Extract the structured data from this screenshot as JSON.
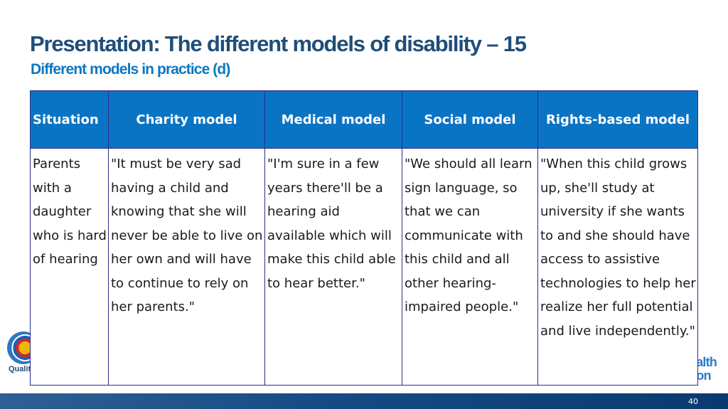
{
  "slide": {
    "title": "Presentation: The different models of disability – 15",
    "subtitle": "Different models in practice (d)",
    "page_number": "40"
  },
  "logos": {
    "left_text": "Quality",
    "right_text_1": "ealth",
    "right_text_2": "tion"
  },
  "table": {
    "headers": [
      "Situation",
      "Charity model",
      "Medical model",
      "Social model",
      "Rights-based model"
    ],
    "rows": [
      [
        "Parents with a daughter who is hard of hearing",
        "\"It must be very sad having a child and knowing that she will never be able to live on her own and will have to continue to rely on her parents.\"",
        "\"I'm sure in a few years there'll be a hearing aid available which will make this child able to hear better.\"",
        "\"We should all learn sign language, so that we can communicate with this child and all other hearing-impaired people.\"",
        "\"When this child grows up, she'll study at university if she wants to and she should have access to assistive technologies to help her realize her full potential and live independently.\""
      ]
    ]
  }
}
